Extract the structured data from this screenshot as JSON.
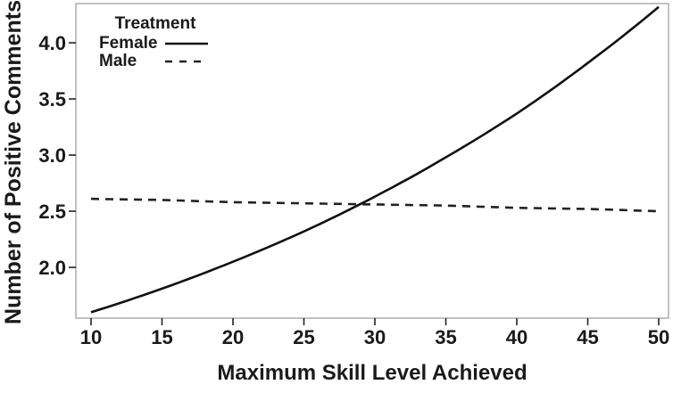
{
  "chart_data": {
    "type": "line",
    "title": "",
    "xlabel": "Maximum Skill Level Achieved",
    "ylabel": "Number of Positive Comments",
    "x": [
      10,
      15,
      20,
      25,
      30,
      35,
      40,
      45,
      50
    ],
    "xtick_labels": [
      "10",
      "15",
      "20",
      "25",
      "30",
      "35",
      "40",
      "45",
      "50"
    ],
    "ytick_values": [
      2.0,
      2.5,
      3.0,
      3.5,
      4.0
    ],
    "ytick_labels": [
      "2.0",
      "2.5",
      "3.0",
      "3.5",
      "4.0"
    ],
    "xlim": [
      8.9,
      50.7
    ],
    "ylim": [
      1.55,
      4.35
    ],
    "grid": false,
    "frame": "box",
    "legend": {
      "title": "Treatment",
      "position": "top-left",
      "entries": [
        {
          "label": "Female",
          "style": "solid"
        },
        {
          "label": "Male",
          "style": "dashed"
        }
      ]
    },
    "series": [
      {
        "name": "Female",
        "style": "solid",
        "color": "#111111",
        "values": [
          1.6,
          1.81,
          2.05,
          2.32,
          2.63,
          2.98,
          3.37,
          3.82,
          4.32
        ]
      },
      {
        "name": "Male",
        "style": "dashed",
        "color": "#222222",
        "values": [
          2.61,
          2.6,
          2.58,
          2.57,
          2.56,
          2.55,
          2.53,
          2.52,
          2.5
        ]
      }
    ],
    "colors": {
      "text": "#1a1a1a",
      "frame": "#999999",
      "tick": "#222222"
    }
  }
}
